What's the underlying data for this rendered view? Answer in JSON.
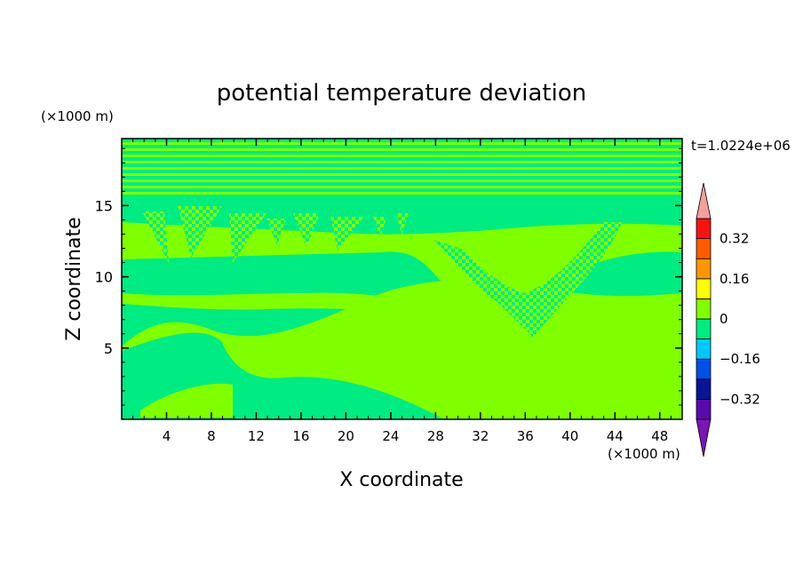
{
  "chart_data": {
    "type": "heatmap",
    "title": "potential temperature deviation",
    "xlabel": "X coordinate",
    "ylabel": "Z coordinate",
    "x_unit": "(×1000 m)",
    "y_unit": "(×1000 m)",
    "time_label": "t=1.0224e+06",
    "xlim": [
      0,
      50
    ],
    "ylim": [
      0,
      19.7
    ],
    "x_ticks": [
      4,
      8,
      12,
      16,
      20,
      24,
      28,
      32,
      36,
      40,
      44,
      48
    ],
    "y_ticks": [
      5,
      10,
      15
    ],
    "colorbar": {
      "levels": [
        -0.4,
        -0.32,
        -0.24,
        -0.16,
        -0.08,
        0,
        0.08,
        0.16,
        0.24,
        0.32,
        0.4
      ],
      "tick_labels": [
        "0.32",
        "0.16",
        "0",
        "−0.16",
        "−0.32"
      ],
      "tick_values": [
        0.32,
        0.16,
        0,
        -0.16,
        -0.32
      ],
      "colors": [
        "#5a0aa8",
        "#0a1496",
        "#0050e6",
        "#00c8ff",
        "#00eb82",
        "#80ff00",
        "#ffff00",
        "#ff9600",
        "#ff5a00",
        "#f51414"
      ],
      "under_color": "#7a14b4",
      "over_color": "#f5a0a0",
      "extend": "both"
    },
    "field_description_levels": {
      "background_level": "-0.08 to 0",
      "anomaly_level": "0 to 0.08"
    },
    "colors": {
      "background": "#00eb82",
      "anomaly": "#80ff00"
    }
  }
}
